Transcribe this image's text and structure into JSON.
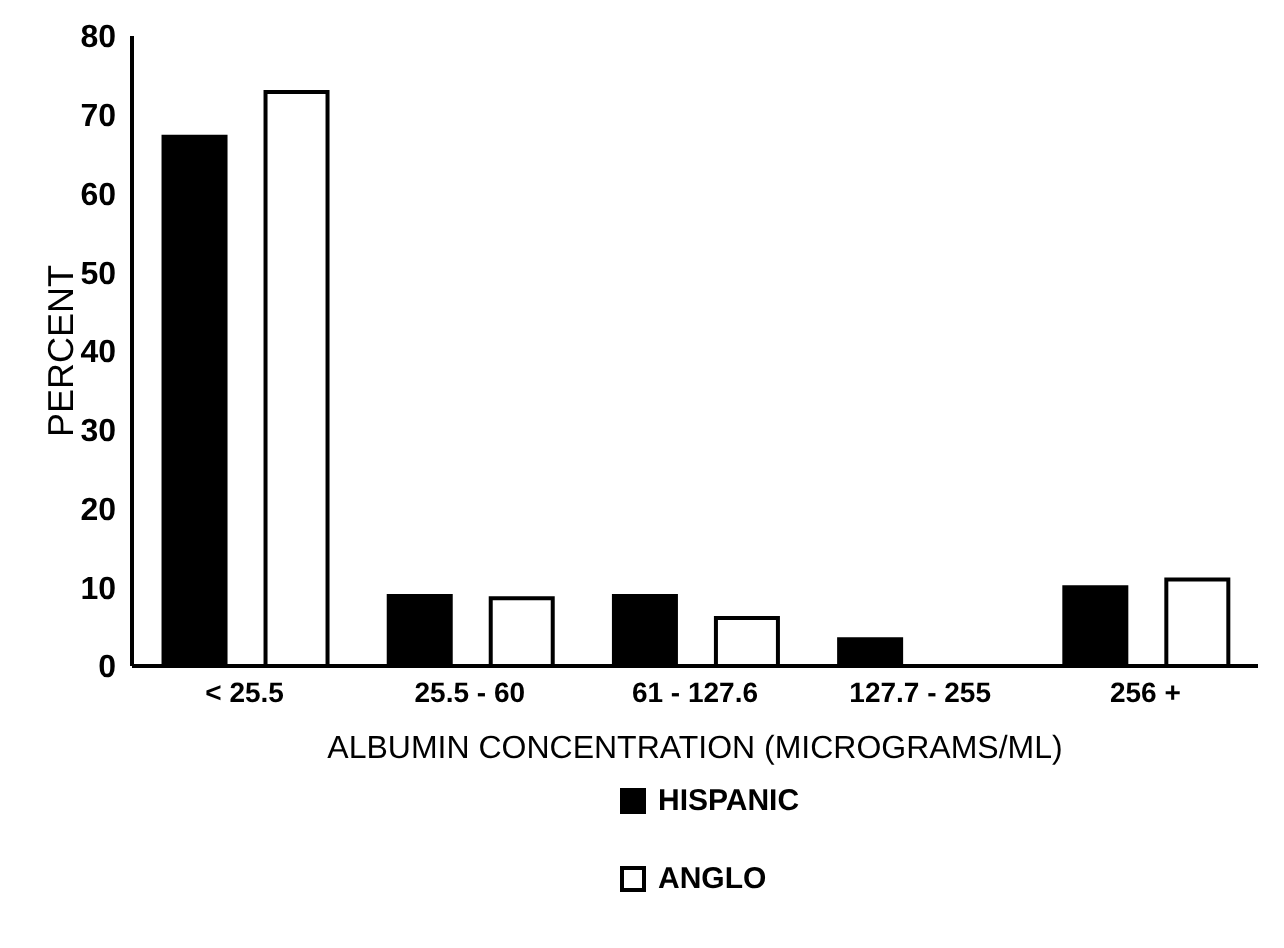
{
  "chart_data": {
    "type": "bar",
    "xlabel": "ALBUMIN CONCENTRATION (MICROGRAMS/ML)",
    "ylabel": "PERCENT",
    "categories": [
      "< 25.5",
      "25.5 - 60",
      "61 - 127.6",
      "127.7 - 255",
      "256 +"
    ],
    "series": [
      {
        "name": "HISPANIC",
        "color": "#000000",
        "values": [
          67.2,
          8.9,
          8.9,
          3.4,
          10.0
        ]
      },
      {
        "name": "ANGLO",
        "color": "#ffffff",
        "values": [
          72.9,
          8.6,
          6.1,
          0,
          11.0
        ]
      }
    ],
    "ylim": [
      0,
      80
    ],
    "yticks": [
      0,
      10,
      20,
      30,
      40,
      50,
      60,
      70,
      80
    ],
    "grid": false,
    "legend": "bottom"
  }
}
